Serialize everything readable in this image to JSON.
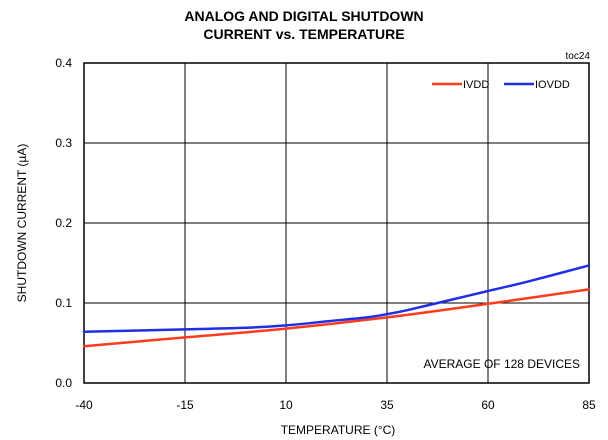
{
  "chart_data": {
    "type": "line",
    "title_lines": [
      "ANALOG AND DIGITAL SHUTDOWN",
      "CURRENT vs. TEMPERATURE"
    ],
    "tag": "toc24",
    "xlabel": "TEMPERATURE (°C)",
    "ylabel": "SHUTDOWN CURRENT (µA)",
    "xlim": [
      -40,
      85
    ],
    "ylim": [
      0,
      0.4
    ],
    "x_ticks": [
      -40,
      -15,
      10,
      35,
      60,
      85
    ],
    "x_tick_labels": [
      "-40",
      "-15",
      "10",
      "35",
      "60",
      "85"
    ],
    "y_ticks": [
      0,
      0.1,
      0.2,
      0.3,
      0.4
    ],
    "y_tick_labels": [
      "0.0",
      "0.1",
      "0.2",
      "0.3",
      "0.4"
    ],
    "grid": true,
    "legend_position": "top-right",
    "annotation": "AVERAGE OF 128 DEVICES",
    "series": [
      {
        "name": "IVDD",
        "color": "#ff3b1f",
        "x": [
          -40,
          -15,
          10,
          35,
          60,
          85
        ],
        "values": [
          0.046,
          0.057,
          0.068,
          0.082,
          0.099,
          0.117
        ]
      },
      {
        "name": "IOVDD",
        "color": "#1f2fe6",
        "x": [
          -40,
          -15,
          0,
          10,
          20,
          30,
          35,
          40,
          50,
          60,
          70,
          85
        ],
        "values": [
          0.064,
          0.067,
          0.069,
          0.072,
          0.077,
          0.082,
          0.086,
          0.091,
          0.103,
          0.115,
          0.127,
          0.147
        ]
      }
    ]
  }
}
